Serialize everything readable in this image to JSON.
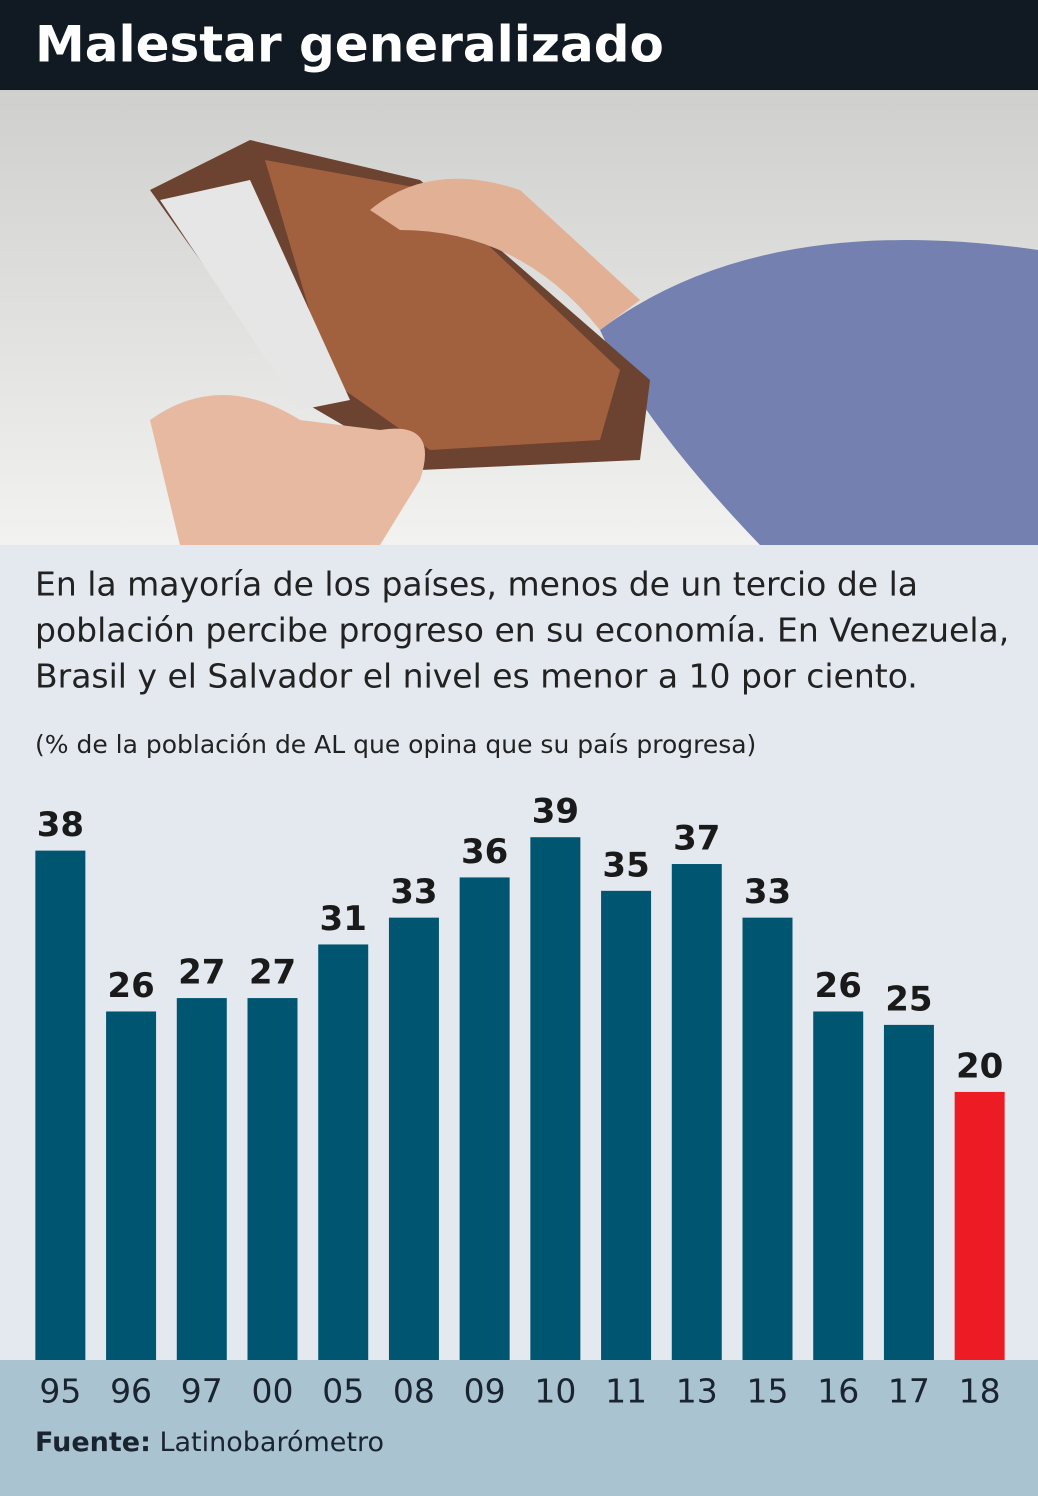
{
  "chart_data": {
    "type": "bar",
    "title": "Malestar generalizado",
    "description": [
      "En la mayoría de los países, menos de un tercio de la",
      "población percibe progreso en su economía. En Venezuela,",
      "Brasil y el Salvador el nivel es menor a 10 por ciento."
    ],
    "note": "(% de la población de AL que opina que su país progresa)",
    "categories": [
      "95",
      "96",
      "97",
      "00",
      "05",
      "08",
      "09",
      "10",
      "11",
      "13",
      "15",
      "16",
      "17",
      "18"
    ],
    "values": [
      38,
      26,
      27,
      27,
      31,
      33,
      36,
      39,
      35,
      37,
      33,
      26,
      25,
      20
    ],
    "colors": [
      "#005670",
      "#005670",
      "#005670",
      "#005670",
      "#005670",
      "#005670",
      "#005670",
      "#005670",
      "#005670",
      "#005670",
      "#005670",
      "#005670",
      "#005670",
      "#ed1c24"
    ],
    "ylim": [
      0,
      42
    ],
    "source_label": "Fuente:",
    "source": "Latinobarómetro"
  }
}
